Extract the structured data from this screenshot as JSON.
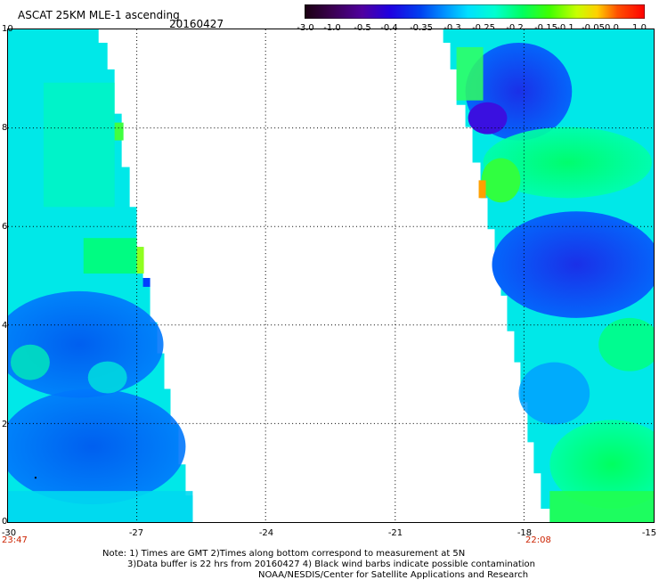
{
  "header": {
    "title": "ASCAT 25KM MLE-1 ascending",
    "date": "20160427"
  },
  "colorbar": {
    "labels": [
      "-3.0",
      "-1.0",
      "-0.5",
      "-0.4",
      "-0.35",
      "-0.3",
      "-0.25",
      "-0.2",
      "-0.15",
      "-0.1",
      "-0.05",
      "0.0",
      "1.0"
    ],
    "colors": [
      "#1a0010",
      "#3a0050",
      "#5000a0",
      "#2000e0",
      "#0040f0",
      "#0090ff",
      "#00e0ff",
      "#00ffd0",
      "#00ff60",
      "#40ff00",
      "#c8ff00",
      "#ffd000",
      "#ff5000",
      "#ff0000"
    ]
  },
  "axes": {
    "y_ticks": [
      "10",
      "8",
      "6",
      "4",
      "2",
      "0"
    ],
    "x_ticks": [
      "-30",
      "-27",
      "-24",
      "-21",
      "-18",
      "-15"
    ]
  },
  "times": {
    "left": "23:47",
    "right": "22:08"
  },
  "notes": {
    "line1": "Note: 1) Times are GMT 2)Times along bottom correspond to measurement at 5N",
    "line2": "3)Data buffer is 22 hrs from 20160427 4) Black wind barbs indicate possible contamination",
    "line3": "NOAA/NESDIS/Center for Satellite Applications and Research"
  }
}
